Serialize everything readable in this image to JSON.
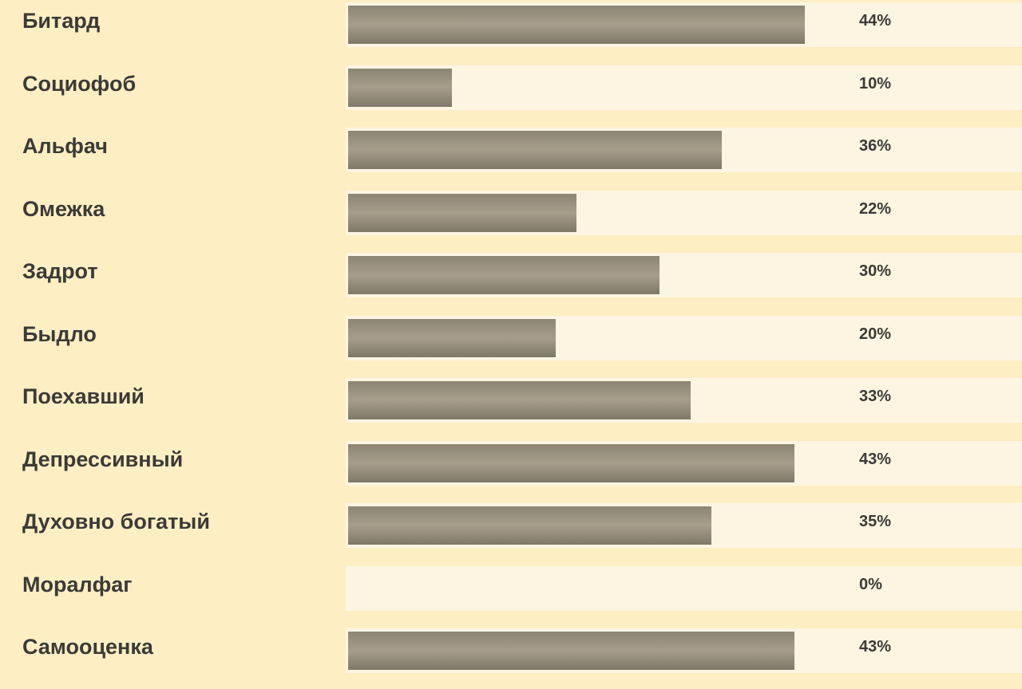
{
  "chart_data": {
    "type": "bar",
    "orientation": "horizontal",
    "categories": [
      "Битард",
      "Социофоб",
      "Альфач",
      "Омежка",
      "Задрот",
      "Быдло",
      "Поехавший",
      "Депрессивный",
      "Духовно богатый",
      "Моралфаг",
      "Самооценка"
    ],
    "values": [
      44,
      10,
      36,
      22,
      30,
      20,
      33,
      43,
      35,
      0,
      43
    ],
    "value_labels": [
      "44%",
      "10%",
      "36%",
      "22%",
      "30%",
      "20%",
      "33%",
      "43%",
      "35%",
      "0%",
      "43%"
    ],
    "xlim": [
      0,
      100
    ],
    "grid": false,
    "legend": "none"
  },
  "colors": {
    "background": "#feeec4",
    "track": "#fdf5e2",
    "bar": "#968e7e",
    "text": "#3c3a36"
  }
}
